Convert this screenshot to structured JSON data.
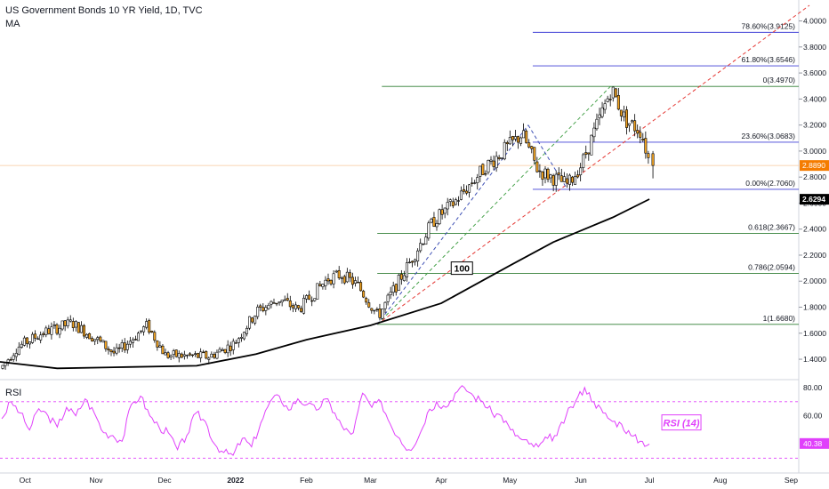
{
  "header": {
    "title": "US Government Bonds 10 YR Yield, 1D, TVC",
    "indicator": "MA"
  },
  "chart_data": [
    {
      "type": "candlestick",
      "title": "US Government Bonds 10 YR Yield, 1D, TVC",
      "ylim": [
        1.25,
        4.12
      ],
      "y_ticks": [
        "4.0000",
        "3.8000",
        "3.6000",
        "3.4000",
        "3.2000",
        "3.0000",
        "2.8000",
        "2.6000",
        "2.4000",
        "2.2000",
        "2.0000",
        "1.8000",
        "1.6000",
        "1.4000"
      ],
      "x_ticks": [
        "Oct",
        "Nov",
        "Dec",
        "2022",
        "Feb",
        "Mar",
        "Apr",
        "May",
        "Jun",
        "Jul",
        "Aug",
        "Sep"
      ],
      "last_price": "2.8890",
      "ma_value": "2.6294",
      "ma_label": "100",
      "fib_levels_upper": [
        {
          "label": "78.60%(3.9125)",
          "value": 3.9125
        },
        {
          "label": "61.80%(3.6546)",
          "value": 3.6546
        },
        {
          "label": "0(3.4970)",
          "value": 3.497
        },
        {
          "label": "23.60%(3.0683)",
          "value": 3.0683
        },
        {
          "label": "0.00%(2.7060)",
          "value": 2.706
        }
      ],
      "fib_levels_lower": [
        {
          "label": "0.618(2.3667)",
          "value": 2.3667
        },
        {
          "label": "0.786(2.0594)",
          "value": 2.0594
        },
        {
          "label": "1(1.6680)",
          "value": 1.668
        }
      ],
      "price_path": [
        {
          "x": "2021-09-20",
          "y": 1.33
        },
        {
          "x": "2021-09-27",
          "y": 1.49
        },
        {
          "x": "2021-10-08",
          "y": 1.6
        },
        {
          "x": "2021-10-21",
          "y": 1.68
        },
        {
          "x": "2021-11-01",
          "y": 1.55
        },
        {
          "x": "2021-11-09",
          "y": 1.44
        },
        {
          "x": "2021-11-23",
          "y": 1.66
        },
        {
          "x": "2021-12-01",
          "y": 1.43
        },
        {
          "x": "2021-12-20",
          "y": 1.42
        },
        {
          "x": "2021-12-31",
          "y": 1.52
        },
        {
          "x": "2022-01-10",
          "y": 1.77
        },
        {
          "x": "2022-01-20",
          "y": 1.86
        },
        {
          "x": "2022-01-28",
          "y": 1.78
        },
        {
          "x": "2022-02-10",
          "y": 2.02
        },
        {
          "x": "2022-02-16",
          "y": 2.05
        },
        {
          "x": "2022-02-23",
          "y": 1.97
        },
        {
          "x": "2022-03-04",
          "y": 1.73
        },
        {
          "x": "2022-03-18",
          "y": 2.15
        },
        {
          "x": "2022-03-28",
          "y": 2.46
        },
        {
          "x": "2022-04-06",
          "y": 2.6
        },
        {
          "x": "2022-04-20",
          "y": 2.88
        },
        {
          "x": "2022-05-06",
          "y": 3.13
        },
        {
          "x": "2022-05-13",
          "y": 2.85
        },
        {
          "x": "2022-05-26",
          "y": 2.74
        },
        {
          "x": "2022-06-01",
          "y": 2.9
        },
        {
          "x": "2022-06-14",
          "y": 3.48
        },
        {
          "x": "2022-06-20",
          "y": 3.24
        },
        {
          "x": "2022-06-27",
          "y": 3.15
        },
        {
          "x": "2022-07-01",
          "y": 2.89
        }
      ],
      "ma100_path": [
        {
          "x": "2021-09-20",
          "y": 1.38
        },
        {
          "x": "2021-10-15",
          "y": 1.33
        },
        {
          "x": "2021-11-15",
          "y": 1.34
        },
        {
          "x": "2021-12-15",
          "y": 1.35
        },
        {
          "x": "2022-01-10",
          "y": 1.44
        },
        {
          "x": "2022-02-01",
          "y": 1.55
        },
        {
          "x": "2022-03-01",
          "y": 1.66
        },
        {
          "x": "2022-04-01",
          "y": 1.83
        },
        {
          "x": "2022-05-01",
          "y": 2.12
        },
        {
          "x": "2022-05-20",
          "y": 2.3
        },
        {
          "x": "2022-06-15",
          "y": 2.49
        },
        {
          "x": "2022-07-01",
          "y": 2.63
        }
      ],
      "trendlines": [
        {
          "color": "#e53935",
          "style": "dashed",
          "from": {
            "x": "2022-03-04",
            "y": 1.668
          },
          "to": {
            "x": "2022-09-09",
            "y": 4.12
          }
        },
        {
          "color": "#43a047",
          "style": "dashed",
          "from": {
            "x": "2022-03-04",
            "y": 1.668
          },
          "to": {
            "x": "2022-06-14",
            "y": 3.497
          }
        },
        {
          "color": "#3f51b5",
          "style": "dashed",
          "from": {
            "x": "2022-03-04",
            "y": 1.668
          },
          "to": {
            "x": "2022-05-09",
            "y": 3.2
          }
        },
        {
          "color": "#3f51b5",
          "style": "dashed",
          "from": {
            "x": "2022-05-09",
            "y": 3.2
          },
          "to": {
            "x": "2022-05-26",
            "y": 2.71
          }
        }
      ]
    },
    {
      "type": "line",
      "title": "RSI",
      "series_label": "RSI (14)",
      "ylim": [
        22,
        85
      ],
      "y_ticks": [
        "80.00",
        "60.00"
      ],
      "current_value": "40.38",
      "levels": [
        70,
        30
      ],
      "values": [
        58,
        70,
        62,
        50,
        65,
        60,
        52,
        66,
        60,
        72,
        62,
        48,
        46,
        42,
        68,
        74,
        60,
        52,
        48,
        36,
        46,
        62,
        56,
        40,
        34,
        32,
        44,
        38,
        55,
        70,
        74,
        64,
        72,
        68,
        64,
        72,
        62,
        50,
        48,
        76,
        66,
        70,
        54,
        44,
        36,
        44,
        62,
        70,
        66,
        76,
        80,
        74,
        70,
        62,
        60,
        50,
        44,
        40,
        38,
        44,
        46,
        60,
        70,
        80,
        70,
        62,
        56,
        54,
        46,
        42,
        40
      ]
    }
  ]
}
